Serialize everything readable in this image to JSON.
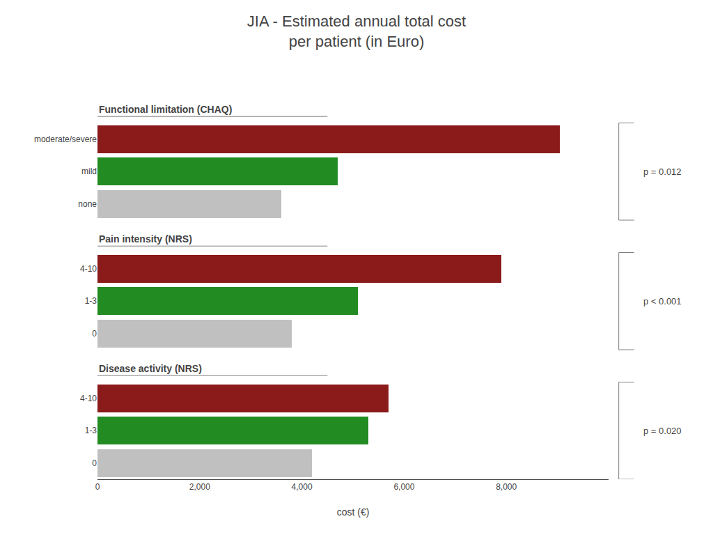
{
  "chart_data": {
    "type": "bar",
    "orientation": "horizontal",
    "title": "JIA - Estimated annual total cost",
    "subtitle": "per patient (in Euro)",
    "xlabel": "cost (€)",
    "groups": [
      {
        "label": "Functional limitation (CHAQ)",
        "categories": [
          "moderate/severe",
          "mild",
          "none"
        ],
        "values": [
          9050,
          4700,
          3600
        ],
        "colors": [
          "#8B1A1A",
          "#228B22",
          "#C0C0C0"
        ],
        "annotation": "p = 0.012"
      },
      {
        "label": "Pain intensity (NRS)",
        "categories": [
          "4-10",
          "1-3",
          "0"
        ],
        "values": [
          7900,
          5100,
          3800
        ],
        "colors": [
          "#8B1A1A",
          "#228B22",
          "#C0C0C0"
        ],
        "annotation": "p < 0.001"
      },
      {
        "label": "Disease activity (NRS)",
        "categories": [
          "4-10",
          "1-3",
          "0"
        ],
        "values": [
          5700,
          5300,
          4200
        ],
        "colors": [
          "#8B1A1A",
          "#228B22",
          "#C0C0C0"
        ],
        "annotation": "p = 0.020"
      }
    ],
    "xlim": [
      0,
      10000
    ],
    "xticks": [
      0,
      {
        "value": 2000,
        "label": "2,000"
      },
      {
        "value": 4000,
        "label": "4,000"
      },
      {
        "value": 6000,
        "label": "6,000"
      },
      {
        "value": 8000,
        "label": "8,000"
      }
    ],
    "grid": false
  }
}
